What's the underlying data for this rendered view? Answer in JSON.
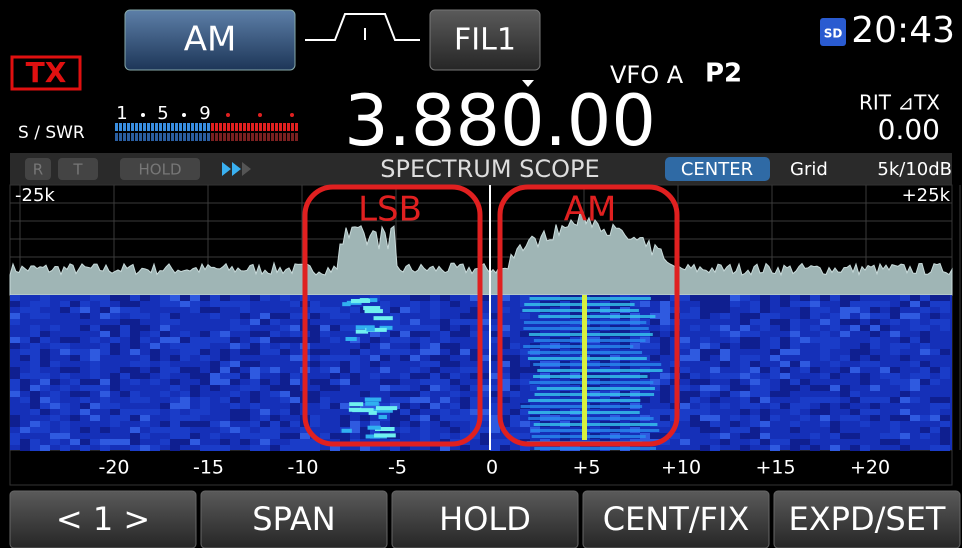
{
  "top_bar": {
    "mode": "AM",
    "filter": "FIL1",
    "tx": "TX",
    "vfo": "VFO A",
    "preset": "P2",
    "sd": "SD",
    "clock": "20:43"
  },
  "meter": {
    "label": "S / SWR",
    "scale": [
      "1",
      "5",
      "9"
    ]
  },
  "frequency": "3.880.00",
  "rit": {
    "label": "RIT ⊿TX",
    "value": "0.00"
  },
  "scope_bar": {
    "indicators": [
      "R",
      "T",
      "HOLD"
    ],
    "title": "SPECTRUM SCOPE",
    "mode": "CENTER",
    "grid": "Grid",
    "scale": "5k/10dB"
  },
  "scope": {
    "left_edge": "-25k",
    "right_edge": "+25k",
    "annotations": [
      "LSB",
      "AM"
    ],
    "axis_labels": [
      "-20",
      "-15",
      "-10",
      "-5",
      "0",
      "+5",
      "+10",
      "+15",
      "+20"
    ]
  },
  "buttons": [
    "< 1 >",
    "SPAN",
    "HOLD",
    "CENT/FIX",
    "EXPD/SET"
  ]
}
